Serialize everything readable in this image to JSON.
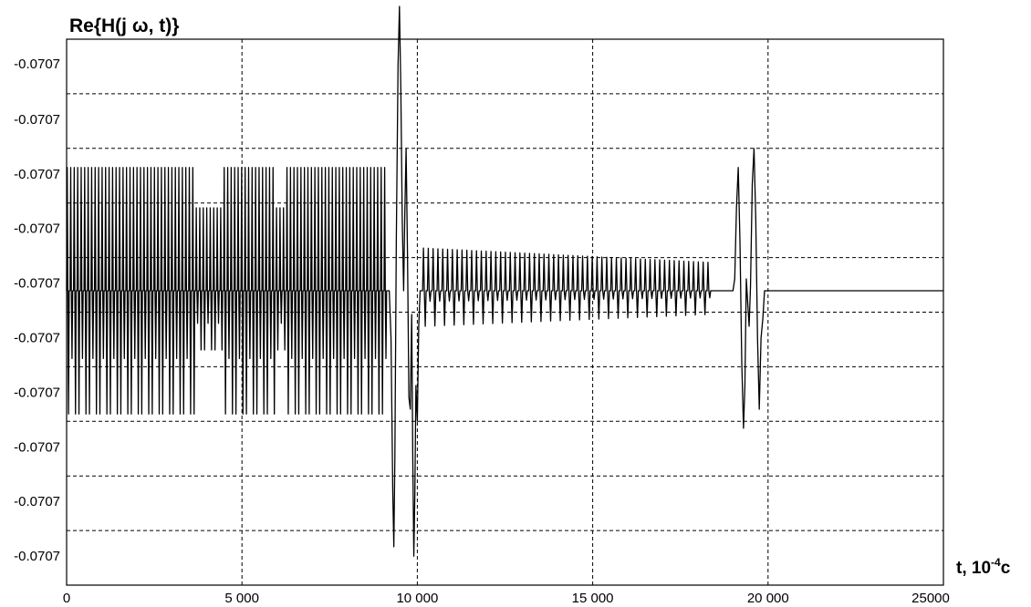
{
  "chart_data": {
    "type": "line",
    "title": "Re{H(j ω, t)}",
    "xlabel_main": "t, 10",
    "xlabel_exp": "-4",
    "xlabel_unit": "c",
    "ylabel": "",
    "xlim": [
      0,
      25000
    ],
    "ylim": [
      -0.0707,
      0.0707
    ],
    "x_ticks": [
      0,
      5000,
      10000,
      15000,
      20000,
      25000
    ],
    "x_tick_labels": [
      "0",
      "5 000",
      "10 000",
      "15 000",
      "20 000",
      "25000"
    ],
    "y_tick_labels": [
      "-0.0707",
      "-0.0707",
      "-0.0707",
      "-0.0707",
      "-0.0707",
      "-0.0707",
      "-0.0707",
      "-0.0707",
      "-0.0707",
      "-0.0707"
    ],
    "y_grid_lines": 9,
    "grid": true,
    "baseline": -0.0707,
    "series": [
      {
        "values": [],
        "segments": [
          {
            "x_start": 0,
            "x_end": 9150,
            "type": "pulse_train",
            "count": 92,
            "upper": 0.52,
            "lower": -0.52,
            "upper_short": 0.35,
            "lower_short": -0.25,
            "short_zones": [
              [
                3650,
                4400
              ],
              [
                5950,
                6250
              ]
            ]
          },
          {
            "x_start": 9200,
            "x_end": 10000,
            "type": "oscillation",
            "points": [
              [
                9200,
                0.0
              ],
              [
                9250,
                -0.2
              ],
              [
                9300,
                -0.85
              ],
              [
                9330,
                -1.08
              ],
              [
                9360,
                -0.7
              ],
              [
                9400,
                0.2
              ],
              [
                9450,
                0.95
              ],
              [
                9490,
                1.2
              ],
              [
                9530,
                0.85
              ],
              [
                9570,
                0.3
              ],
              [
                9610,
                0.0
              ],
              [
                9640,
                0.3
              ],
              [
                9680,
                0.6
              ],
              [
                9720,
                0.15
              ],
              [
                9760,
                -0.45
              ],
              [
                9800,
                -0.5
              ],
              [
                9840,
                -0.1
              ],
              [
                9870,
                -0.7
              ],
              [
                9900,
                -1.12
              ],
              [
                9930,
                -0.85
              ],
              [
                9960,
                -0.4
              ],
              [
                10000,
                -0.55
              ]
            ]
          },
          {
            "x_start": 10000,
            "x_end": 10150,
            "type": "transition",
            "points": [
              [
                10000,
                -0.55
              ],
              [
                10040,
                -0.15
              ],
              [
                10080,
                0.0
              ],
              [
                10150,
                0.0
              ]
            ]
          },
          {
            "x_start": 10150,
            "x_end": 18400,
            "type": "decaying_pulse_train",
            "count": 60,
            "upper_start": 0.18,
            "upper_end": 0.12,
            "lower_start": -0.15,
            "lower_end": -0.1
          },
          {
            "x_start": 18400,
            "x_end": 19000,
            "type": "flat",
            "value": 0.0
          },
          {
            "x_start": 19000,
            "x_end": 20000,
            "type": "oscillation",
            "points": [
              [
                19000,
                0.0
              ],
              [
                19050,
                0.05
              ],
              [
                19100,
                0.35
              ],
              [
                19150,
                0.52
              ],
              [
                19200,
                0.2
              ],
              [
                19250,
                -0.3
              ],
              [
                19300,
                -0.58
              ],
              [
                19340,
                -0.4
              ],
              [
                19380,
                0.05
              ],
              [
                19420,
                -0.05
              ],
              [
                19460,
                -0.15
              ],
              [
                19500,
                0.02
              ],
              [
                19550,
                0.45
              ],
              [
                19600,
                0.6
              ],
              [
                19650,
                0.3
              ],
              [
                19700,
                -0.2
              ],
              [
                19750,
                -0.5
              ],
              [
                19800,
                -0.2
              ],
              [
                19850,
                -0.12
              ],
              [
                19900,
                0.0
              ],
              [
                20000,
                0.0
              ]
            ]
          },
          {
            "x_start": 20000,
            "x_end": 25000,
            "type": "flat",
            "value": 0.0
          }
        ]
      }
    ]
  }
}
